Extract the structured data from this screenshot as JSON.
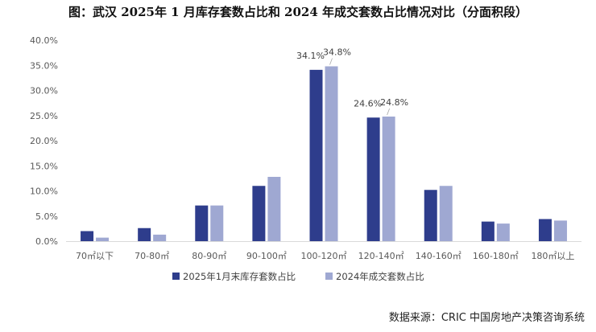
{
  "chart_data": {
    "type": "bar",
    "title": "图：武汉 2025年 1 月库存套数占比和 2024 年成交套数占比情况对比（分面积段）",
    "categories": [
      "70㎡以下",
      "70-80㎡",
      "80-90㎡",
      "90-100㎡",
      "100-120㎡",
      "120-140㎡",
      "140-160㎡",
      "160-180㎡",
      "180㎡以上"
    ],
    "series": [
      {
        "name": "2025年1月末库存套数占比",
        "color": "#2E3D8C",
        "values": [
          2.0,
          2.6,
          7.1,
          11.0,
          34.1,
          24.6,
          10.2,
          3.9,
          4.4
        ]
      },
      {
        "name": "2024年成交套数占比",
        "color": "#9FA8D2",
        "values": [
          0.7,
          1.3,
          7.1,
          12.8,
          34.8,
          24.8,
          11.0,
          3.5,
          4.1
        ]
      }
    ],
    "data_labels": [
      {
        "series": 0,
        "index": 4,
        "text": "34.1%"
      },
      {
        "series": 1,
        "index": 4,
        "text": "34.8%"
      },
      {
        "series": 0,
        "index": 5,
        "text": "24.6%"
      },
      {
        "series": 1,
        "index": 5,
        "text": "24.8%"
      }
    ],
    "ylim": [
      0,
      40
    ],
    "yticks": [
      0,
      5,
      10,
      15,
      20,
      25,
      30,
      35,
      40
    ],
    "ytick_labels": [
      "0.0%",
      "5.0%",
      "10.0%",
      "15.0%",
      "20.0%",
      "25.0%",
      "30.0%",
      "35.0%",
      "40.0%"
    ],
    "xlabel": "",
    "ylabel": "",
    "grid": false,
    "legend_position": "bottom-center"
  },
  "source": "数据来源：CRIC 中国房地产决策咨询系统"
}
